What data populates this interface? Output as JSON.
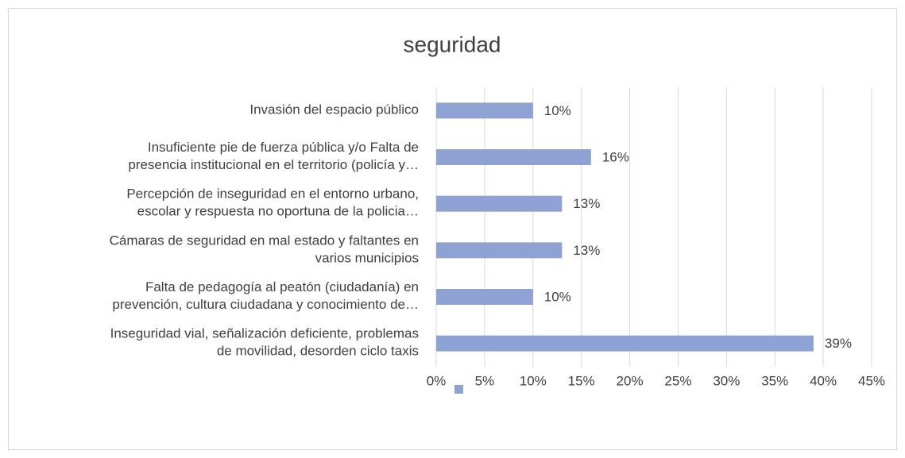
{
  "chart_data": {
    "type": "bar",
    "orientation": "horizontal",
    "title": "seguridad",
    "categories": [
      "Invasión del espacio público",
      "Insuficiente pie de fuerza pública y/o Falta de\npresencia institucional en el territorio (policía y…",
      "Percepción de inseguridad en el entorno urbano,\nescolar y respuesta no oportuna de la policia…",
      "Cámaras de seguridad en mal estado y faltantes en\nvarios municipios",
      "Falta de pedagogía al peatón (ciudadanía) en\nprevención, cultura ciudadana y conocimiento de…",
      "Inseguridad vial, señalización deficiente, problemas\nde movilidad, desorden ciclo taxis"
    ],
    "values": [
      10,
      16,
      13,
      13,
      10,
      39
    ],
    "value_labels": [
      "10%",
      "16%",
      "13%",
      "13%",
      "10%",
      "39%"
    ],
    "color": "#8fa2d4",
    "xlim": [
      0,
      45
    ],
    "xticks": [
      {
        "value": 0,
        "label": "0%"
      },
      {
        "value": 5,
        "label": "5%"
      },
      {
        "value": 10,
        "label": "10%"
      },
      {
        "value": 15,
        "label": "15%"
      },
      {
        "value": 20,
        "label": "20%"
      },
      {
        "value": 25,
        "label": "25%"
      },
      {
        "value": 30,
        "label": "30%"
      },
      {
        "value": 35,
        "label": "35%"
      },
      {
        "value": 40,
        "label": "40%"
      },
      {
        "value": 45,
        "label": "45%"
      }
    ],
    "grid": true
  }
}
